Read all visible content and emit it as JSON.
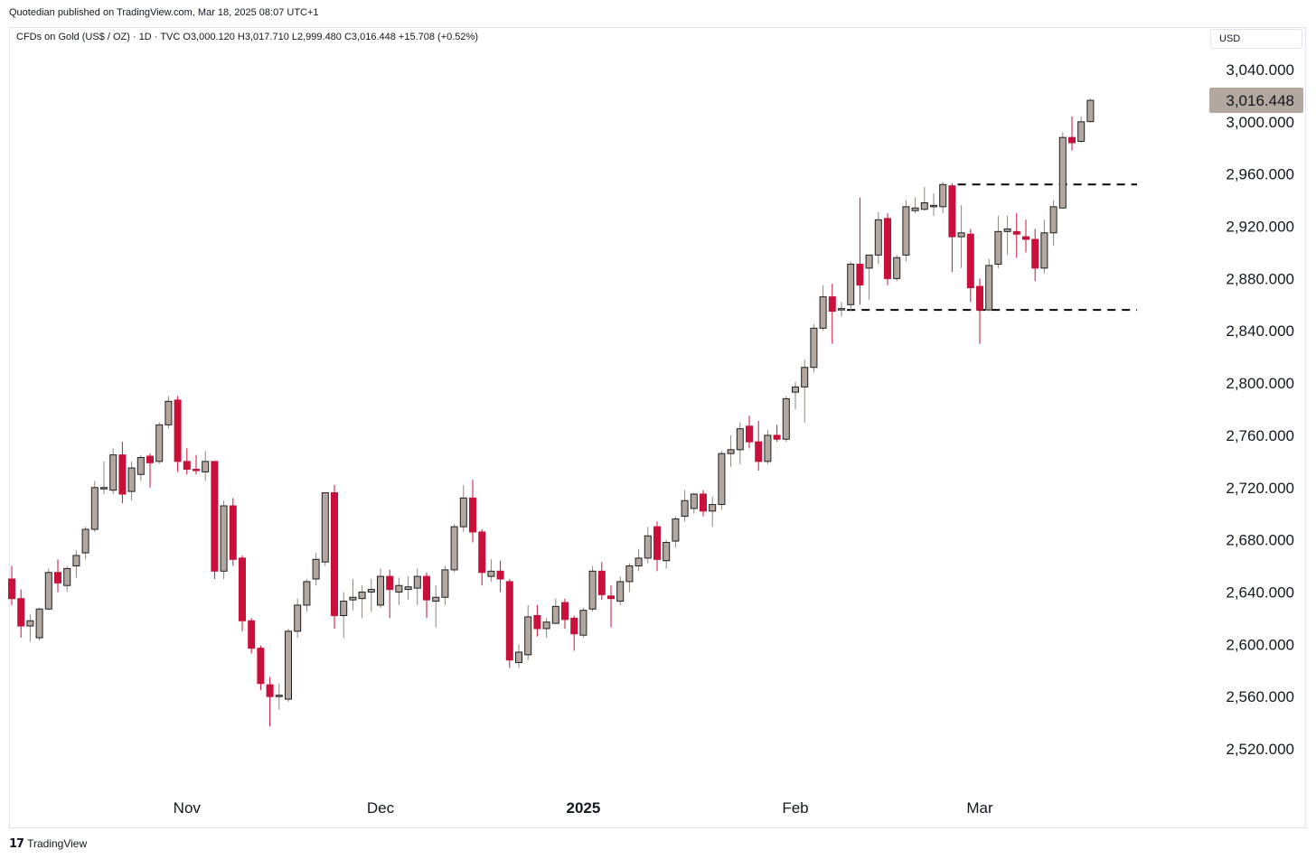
{
  "header": {
    "published_by": "Quotedian published on TradingView.com, Mar 18, 2025 08:07 UTC+1"
  },
  "legend": {
    "text": "CFDs on Gold (US$ / OZ) · 1D · TVC  O3,000.120  H3,017.710  L2,999.480  C3,016.448  +15.708 (+0.52%)"
  },
  "currency": "USD",
  "footer": {
    "brand": "TradingView",
    "logo_mark": "17"
  },
  "colors": {
    "up": "#b2a89f",
    "up_border": "#1f1f1f",
    "down": "#c8103b",
    "price_label_bg": "#b2a89f",
    "dashed_line": "#000000"
  },
  "chart_data": {
    "type": "candlestick",
    "title": "CFDs on Gold (US$ / OZ)",
    "timeframe": "1D",
    "ylim": [
      2490,
      3070
    ],
    "y_ticks": [
      2520,
      2560,
      2600,
      2640,
      2680,
      2720,
      2760,
      2800,
      2840,
      2880,
      2920,
      2960,
      3000,
      3040
    ],
    "y_tick_labels": [
      "2,520.000",
      "2,560.000",
      "2,600.000",
      "2,640.000",
      "2,680.000",
      "2,720.000",
      "2,760.000",
      "2,800.000",
      "2,840.000",
      "2,880.000",
      "2,920.000",
      "2,960.000",
      "3,000.000",
      "3,040.000"
    ],
    "x_labels": [
      {
        "label": "Nov",
        "index": 19,
        "bold": false
      },
      {
        "label": "Dec",
        "index": 40,
        "bold": false
      },
      {
        "label": "2025",
        "index": 62,
        "bold": true
      },
      {
        "label": "Feb",
        "index": 85,
        "bold": false
      },
      {
        "label": "Mar",
        "index": 105,
        "bold": false
      }
    ],
    "last_price": {
      "value": 3016.448,
      "label": "3,016.448"
    },
    "levels": [
      {
        "value": 2952,
        "from_index": 103,
        "to_index": 122,
        "style": "dashed"
      },
      {
        "value": 2856,
        "from_index": 91,
        "to_index": 122,
        "style": "dashed"
      }
    ],
    "candles": [
      {
        "o": 2650,
        "h": 2660,
        "l": 2630,
        "c": 2635
      },
      {
        "o": 2635,
        "h": 2642,
        "l": 2605,
        "c": 2614
      },
      {
        "o": 2614,
        "h": 2623,
        "l": 2602,
        "c": 2618
      },
      {
        "o": 2605,
        "h": 2628,
        "l": 2603,
        "c": 2627
      },
      {
        "o": 2627,
        "h": 2658,
        "l": 2626,
        "c": 2655
      },
      {
        "o": 2655,
        "h": 2665,
        "l": 2640,
        "c": 2647
      },
      {
        "o": 2645,
        "h": 2660,
        "l": 2640,
        "c": 2658
      },
      {
        "o": 2660,
        "h": 2672,
        "l": 2651,
        "c": 2668
      },
      {
        "o": 2670,
        "h": 2690,
        "l": 2665,
        "c": 2688
      },
      {
        "o": 2688,
        "h": 2725,
        "l": 2686,
        "c": 2720
      },
      {
        "o": 2720,
        "h": 2740,
        "l": 2715,
        "c": 2720
      },
      {
        "o": 2718,
        "h": 2750,
        "l": 2715,
        "c": 2745
      },
      {
        "o": 2745,
        "h": 2755,
        "l": 2708,
        "c": 2715
      },
      {
        "o": 2717,
        "h": 2740,
        "l": 2710,
        "c": 2735
      },
      {
        "o": 2730,
        "h": 2745,
        "l": 2725,
        "c": 2743
      },
      {
        "o": 2744,
        "h": 2746,
        "l": 2720,
        "c": 2739
      },
      {
        "o": 2740,
        "h": 2770,
        "l": 2738,
        "c": 2768
      },
      {
        "o": 2768,
        "h": 2790,
        "l": 2765,
        "c": 2786
      },
      {
        "o": 2787,
        "h": 2790,
        "l": 2732,
        "c": 2740
      },
      {
        "o": 2740,
        "h": 2750,
        "l": 2730,
        "c": 2734
      },
      {
        "o": 2734,
        "h": 2745,
        "l": 2730,
        "c": 2733
      },
      {
        "o": 2732,
        "h": 2748,
        "l": 2725,
        "c": 2740
      },
      {
        "o": 2740,
        "h": 2740,
        "l": 2650,
        "c": 2656
      },
      {
        "o": 2656,
        "h": 2710,
        "l": 2650,
        "c": 2706
      },
      {
        "o": 2706,
        "h": 2712,
        "l": 2660,
        "c": 2665
      },
      {
        "o": 2666,
        "h": 2668,
        "l": 2610,
        "c": 2618
      },
      {
        "o": 2618,
        "h": 2620,
        "l": 2593,
        "c": 2597
      },
      {
        "o": 2597,
        "h": 2599,
        "l": 2565,
        "c": 2570
      },
      {
        "o": 2569,
        "h": 2575,
        "l": 2537,
        "c": 2560
      },
      {
        "o": 2560,
        "h": 2570,
        "l": 2550,
        "c": 2561
      },
      {
        "o": 2558,
        "h": 2612,
        "l": 2556,
        "c": 2610
      },
      {
        "o": 2610,
        "h": 2635,
        "l": 2605,
        "c": 2630
      },
      {
        "o": 2630,
        "h": 2650,
        "l": 2625,
        "c": 2648
      },
      {
        "o": 2650,
        "h": 2670,
        "l": 2645,
        "c": 2665
      },
      {
        "o": 2663,
        "h": 2715,
        "l": 2660,
        "c": 2716
      },
      {
        "o": 2716,
        "h": 2722,
        "l": 2612,
        "c": 2622
      },
      {
        "o": 2622,
        "h": 2640,
        "l": 2605,
        "c": 2633
      },
      {
        "o": 2634,
        "h": 2650,
        "l": 2626,
        "c": 2636
      },
      {
        "o": 2635,
        "h": 2645,
        "l": 2620,
        "c": 2640
      },
      {
        "o": 2640,
        "h": 2650,
        "l": 2625,
        "c": 2642
      },
      {
        "o": 2630,
        "h": 2658,
        "l": 2628,
        "c": 2652
      },
      {
        "o": 2652,
        "h": 2657,
        "l": 2620,
        "c": 2642
      },
      {
        "o": 2640,
        "h": 2651,
        "l": 2630,
        "c": 2645
      },
      {
        "o": 2642,
        "h": 2652,
        "l": 2634,
        "c": 2644
      },
      {
        "o": 2643,
        "h": 2658,
        "l": 2630,
        "c": 2652
      },
      {
        "o": 2652,
        "h": 2655,
        "l": 2620,
        "c": 2634
      },
      {
        "o": 2633,
        "h": 2645,
        "l": 2613,
        "c": 2636
      },
      {
        "o": 2636,
        "h": 2660,
        "l": 2630,
        "c": 2657
      },
      {
        "o": 2657,
        "h": 2692,
        "l": 2655,
        "c": 2690
      },
      {
        "o": 2690,
        "h": 2722,
        "l": 2686,
        "c": 2712
      },
      {
        "o": 2712,
        "h": 2726,
        "l": 2678,
        "c": 2686
      },
      {
        "o": 2686,
        "h": 2688,
        "l": 2645,
        "c": 2655
      },
      {
        "o": 2652,
        "h": 2665,
        "l": 2648,
        "c": 2656
      },
      {
        "o": 2656,
        "h": 2664,
        "l": 2640,
        "c": 2650
      },
      {
        "o": 2648,
        "h": 2650,
        "l": 2582,
        "c": 2588
      },
      {
        "o": 2586,
        "h": 2600,
        "l": 2582,
        "c": 2594
      },
      {
        "o": 2592,
        "h": 2630,
        "l": 2588,
        "c": 2621
      },
      {
        "o": 2622,
        "h": 2630,
        "l": 2606,
        "c": 2612
      },
      {
        "o": 2612,
        "h": 2620,
        "l": 2605,
        "c": 2617
      },
      {
        "o": 2616,
        "h": 2635,
        "l": 2616,
        "c": 2629
      },
      {
        "o": 2632,
        "h": 2635,
        "l": 2612,
        "c": 2619
      },
      {
        "o": 2620,
        "h": 2622,
        "l": 2595,
        "c": 2608
      },
      {
        "o": 2607,
        "h": 2628,
        "l": 2605,
        "c": 2626
      },
      {
        "o": 2627,
        "h": 2660,
        "l": 2625,
        "c": 2656
      },
      {
        "o": 2656,
        "h": 2663,
        "l": 2634,
        "c": 2638
      },
      {
        "o": 2637,
        "h": 2645,
        "l": 2613,
        "c": 2635
      },
      {
        "o": 2633,
        "h": 2652,
        "l": 2630,
        "c": 2648
      },
      {
        "o": 2648,
        "h": 2662,
        "l": 2640,
        "c": 2660
      },
      {
        "o": 2660,
        "h": 2673,
        "l": 2656,
        "c": 2666
      },
      {
        "o": 2666,
        "h": 2690,
        "l": 2662,
        "c": 2683
      },
      {
        "o": 2690,
        "h": 2694,
        "l": 2656,
        "c": 2665
      },
      {
        "o": 2664,
        "h": 2680,
        "l": 2658,
        "c": 2678
      },
      {
        "o": 2679,
        "h": 2698,
        "l": 2674,
        "c": 2696
      },
      {
        "o": 2698,
        "h": 2718,
        "l": 2694,
        "c": 2710
      },
      {
        "o": 2704,
        "h": 2716,
        "l": 2700,
        "c": 2715
      },
      {
        "o": 2715,
        "h": 2718,
        "l": 2698,
        "c": 2702
      },
      {
        "o": 2702,
        "h": 2713,
        "l": 2690,
        "c": 2707
      },
      {
        "o": 2707,
        "h": 2748,
        "l": 2703,
        "c": 2746
      },
      {
        "o": 2746,
        "h": 2760,
        "l": 2736,
        "c": 2749
      },
      {
        "o": 2749,
        "h": 2770,
        "l": 2738,
        "c": 2765
      },
      {
        "o": 2767,
        "h": 2775,
        "l": 2750,
        "c": 2755
      },
      {
        "o": 2755,
        "h": 2771,
        "l": 2733,
        "c": 2740
      },
      {
        "o": 2740,
        "h": 2764,
        "l": 2738,
        "c": 2760
      },
      {
        "o": 2760,
        "h": 2768,
        "l": 2755,
        "c": 2757
      },
      {
        "o": 2757,
        "h": 2790,
        "l": 2755,
        "c": 2788
      },
      {
        "o": 2793,
        "h": 2801,
        "l": 2780,
        "c": 2797
      },
      {
        "o": 2797,
        "h": 2818,
        "l": 2770,
        "c": 2812
      },
      {
        "o": 2812,
        "h": 2845,
        "l": 2808,
        "c": 2842
      },
      {
        "o": 2842,
        "h": 2875,
        "l": 2840,
        "c": 2866
      },
      {
        "o": 2866,
        "h": 2876,
        "l": 2830,
        "c": 2855
      },
      {
        "o": 2856,
        "h": 2862,
        "l": 2851,
        "c": 2857
      },
      {
        "o": 2860,
        "h": 2893,
        "l": 2855,
        "c": 2891
      },
      {
        "o": 2891,
        "h": 2942,
        "l": 2860,
        "c": 2875
      },
      {
        "o": 2888,
        "h": 2898,
        "l": 2864,
        "c": 2898
      },
      {
        "o": 2898,
        "h": 2931,
        "l": 2891,
        "c": 2925
      },
      {
        "o": 2926,
        "h": 2930,
        "l": 2875,
        "c": 2880
      },
      {
        "o": 2880,
        "h": 2898,
        "l": 2878,
        "c": 2896
      },
      {
        "o": 2898,
        "h": 2940,
        "l": 2893,
        "c": 2935
      },
      {
        "o": 2932,
        "h": 2942,
        "l": 2930,
        "c": 2934
      },
      {
        "o": 2933,
        "h": 2950,
        "l": 2932,
        "c": 2938
      },
      {
        "o": 2936,
        "h": 2945,
        "l": 2928,
        "c": 2936
      },
      {
        "o": 2935,
        "h": 2954,
        "l": 2930,
        "c": 2952
      },
      {
        "o": 2951,
        "h": 2953,
        "l": 2885,
        "c": 2912
      },
      {
        "o": 2912,
        "h": 2936,
        "l": 2888,
        "c": 2915
      },
      {
        "o": 2914,
        "h": 2918,
        "l": 2862,
        "c": 2873
      },
      {
        "o": 2874,
        "h": 2880,
        "l": 2830,
        "c": 2856
      },
      {
        "o": 2856,
        "h": 2895,
        "l": 2855,
        "c": 2890
      },
      {
        "o": 2891,
        "h": 2928,
        "l": 2888,
        "c": 2916
      },
      {
        "o": 2916,
        "h": 2928,
        "l": 2898,
        "c": 2918
      },
      {
        "o": 2916,
        "h": 2930,
        "l": 2896,
        "c": 2914
      },
      {
        "o": 2912,
        "h": 2925,
        "l": 2900,
        "c": 2910
      },
      {
        "o": 2910,
        "h": 2918,
        "l": 2878,
        "c": 2888
      },
      {
        "o": 2888,
        "h": 2925,
        "l": 2884,
        "c": 2915
      },
      {
        "o": 2915,
        "h": 2940,
        "l": 2905,
        "c": 2935
      },
      {
        "o": 2934,
        "h": 2992,
        "l": 2934,
        "c": 2988
      },
      {
        "o": 2988,
        "h": 3004,
        "l": 2978,
        "c": 2984
      },
      {
        "o": 2985,
        "h": 3004,
        "l": 2984,
        "c": 3000
      },
      {
        "o": 3000.12,
        "h": 3017.71,
        "l": 2999.48,
        "c": 3016.448
      }
    ]
  }
}
